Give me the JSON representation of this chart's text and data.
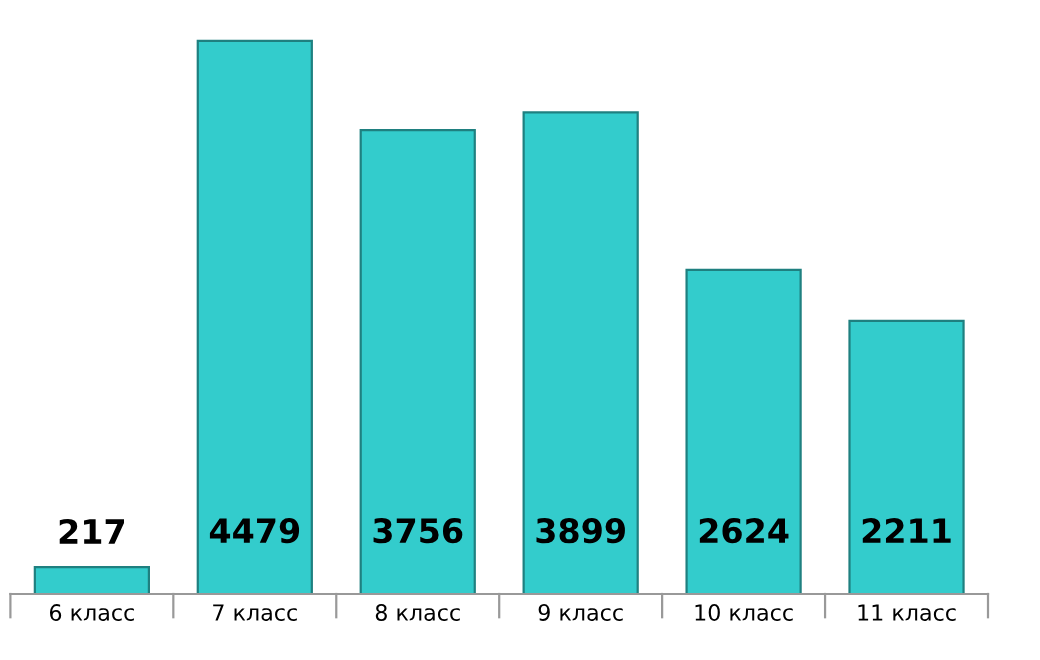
{
  "chart_data": {
    "type": "bar",
    "categories": [
      "6 класс",
      "7 класс",
      "8 класс",
      "9 класс",
      "10 класс",
      "11 класс"
    ],
    "values": [
      217,
      4479,
      3756,
      3899,
      2624,
      2211
    ],
    "color": "#33cccc",
    "data_labels": true,
    "grid": false,
    "legend": false
  }
}
